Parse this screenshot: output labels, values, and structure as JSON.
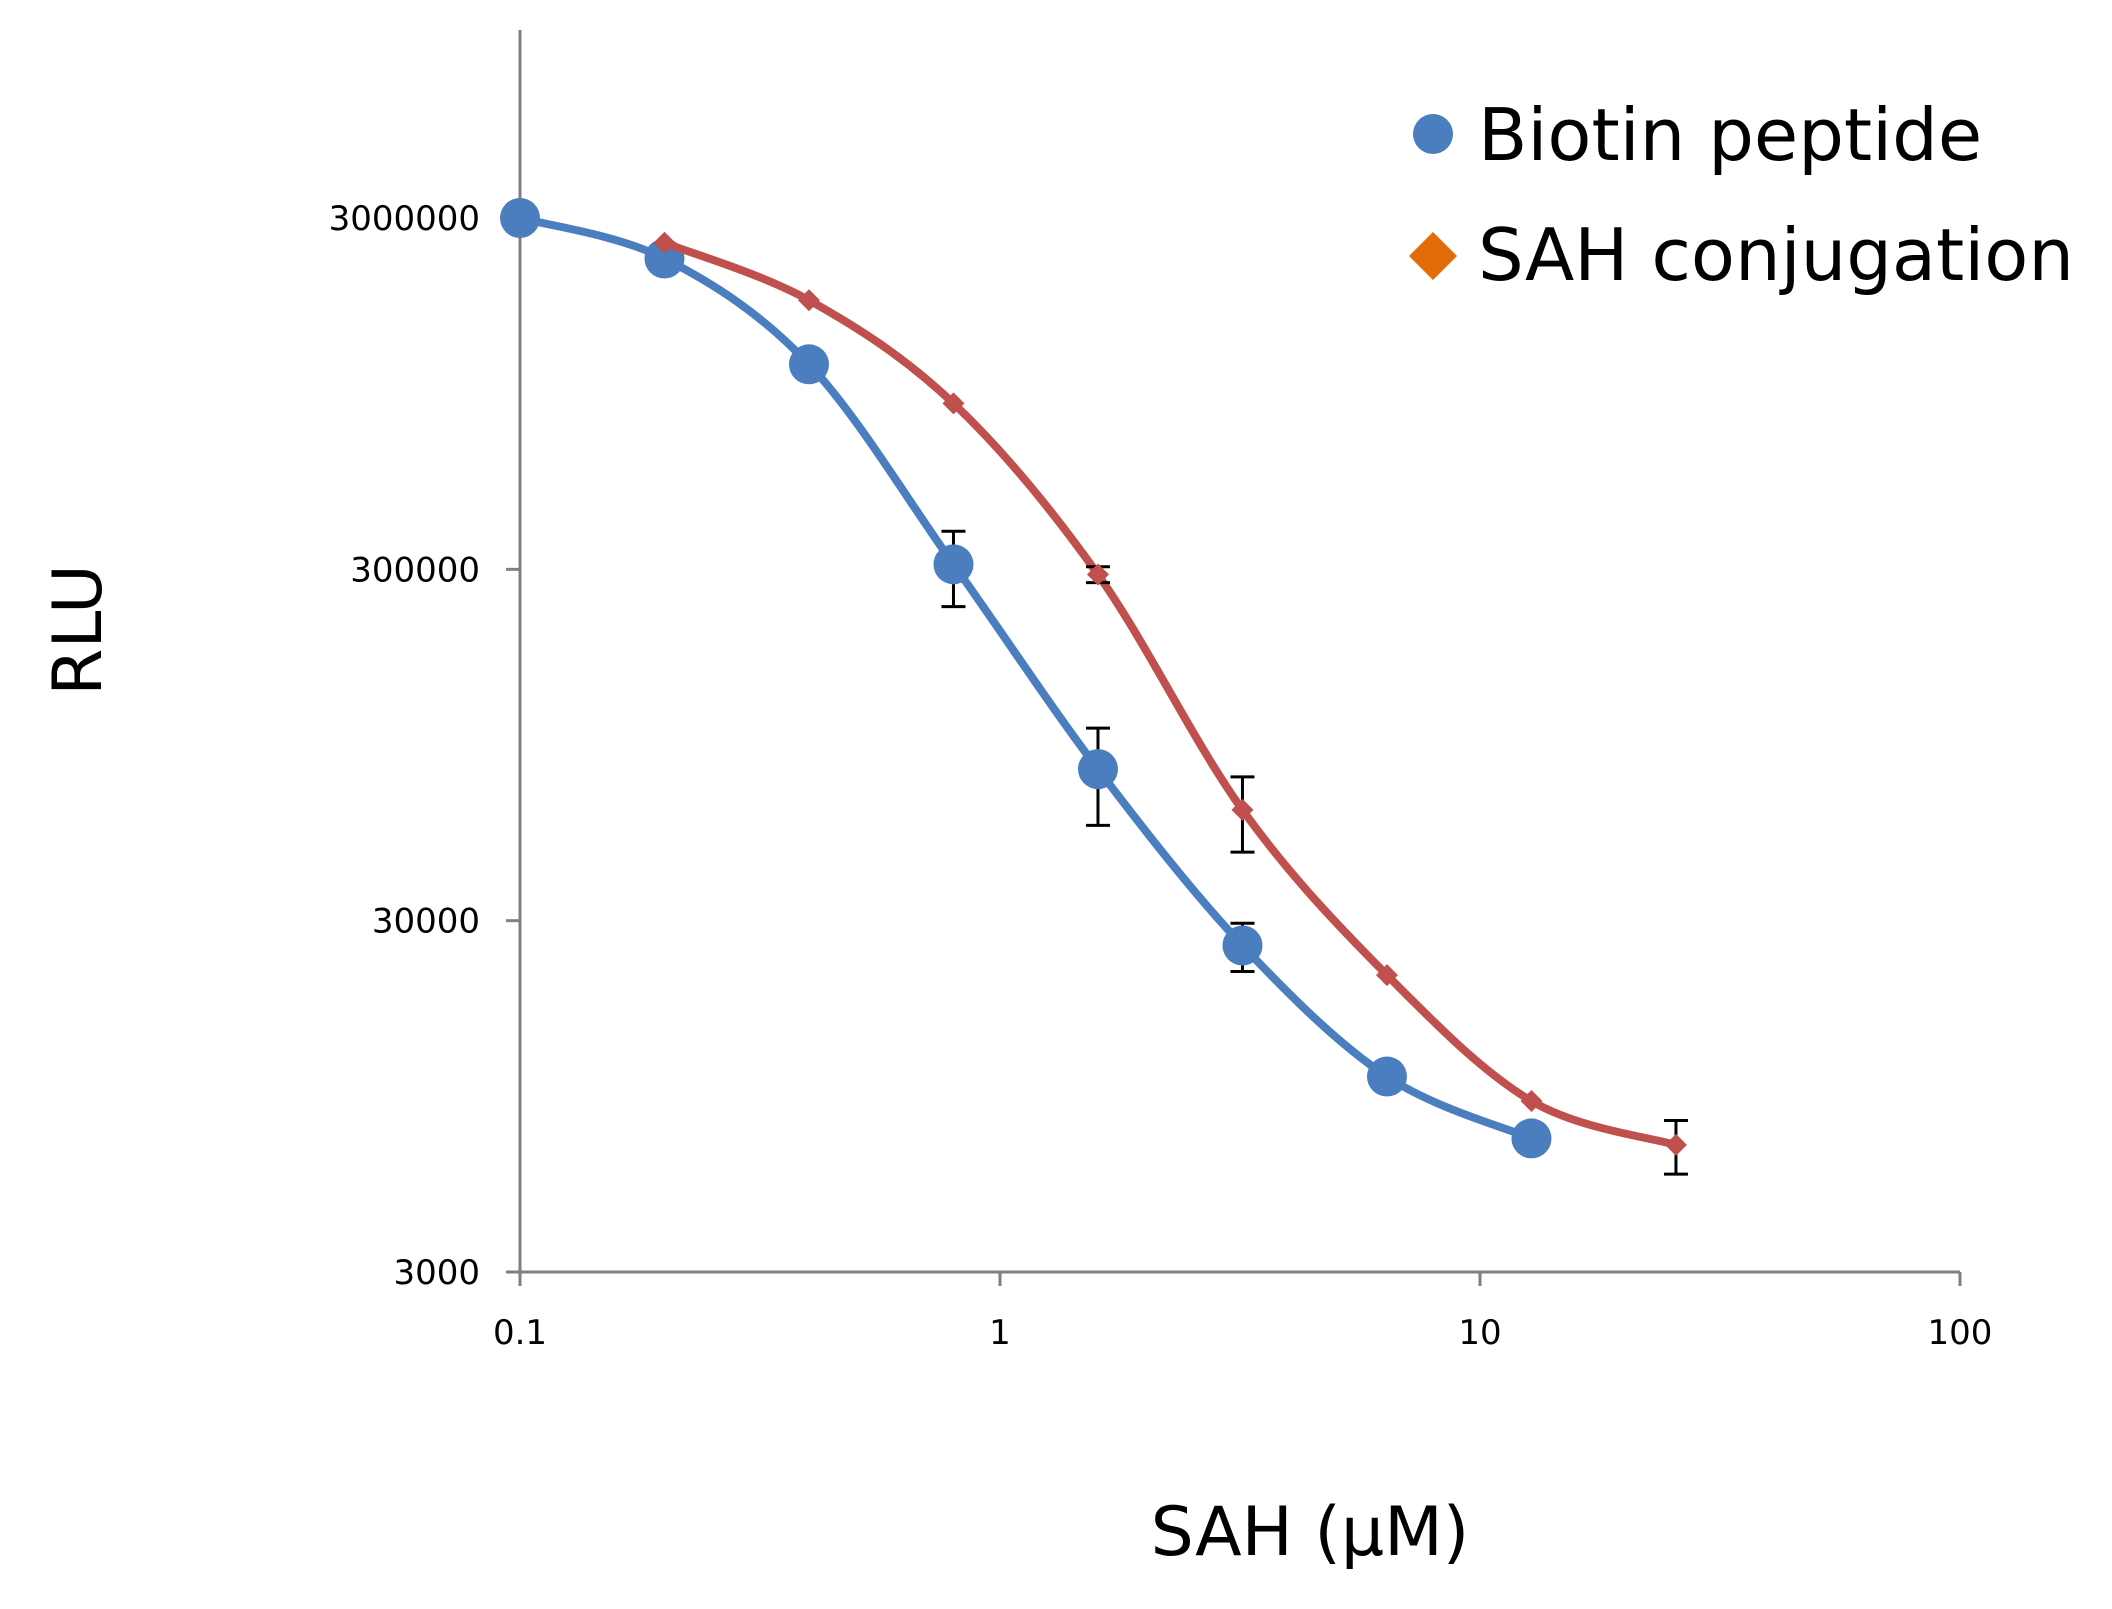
{
  "chart_data": {
    "type": "line",
    "xlabel": "SAH (μM)",
    "ylabel": "RLU",
    "x_scale": "log",
    "y_scale": "log",
    "xlim": [
      0.1,
      100
    ],
    "ylim": [
      3000,
      30000000
    ],
    "x_ticks": [
      {
        "value": 0.1,
        "label": "0.1"
      },
      {
        "value": 1,
        "label": "1"
      },
      {
        "value": 10,
        "label": "10"
      },
      {
        "value": 100,
        "label": "100"
      }
    ],
    "y_ticks": [
      {
        "value": 3000,
        "label": "3000"
      },
      {
        "value": 30000,
        "label": "30000"
      },
      {
        "value": 300000,
        "label": "300000"
      },
      {
        "value": 3000000,
        "label": "3000000"
      }
    ],
    "grid": false,
    "legend": "top-right",
    "series": [
      {
        "name": "Biotin peptide",
        "color": "#4a7ebf",
        "marker": "circle",
        "x": [
          0.1,
          0.2,
          0.4,
          0.8,
          1.6,
          3.2,
          6.4,
          12.8
        ],
        "y": [
          3000000,
          2300000,
          1150000,
          310000,
          81000,
          25500,
          10800,
          7200
        ],
        "error": [
          0,
          0,
          0,
          75000,
          25000,
          4000,
          0,
          0
        ]
      },
      {
        "name": "SAH conjugation",
        "color": "#c0504d",
        "marker": "diamond",
        "legend_color": "#e36c09",
        "x": [
          0.2,
          0.4,
          0.8,
          1.6,
          3.2,
          6.4,
          12.8,
          25.6
        ],
        "y": [
          2550000,
          1750000,
          890000,
          290000,
          62000,
          21000,
          9200,
          6900
        ],
        "error": [
          0,
          0,
          0,
          15000,
          15000,
          0,
          0,
          1200
        ]
      }
    ]
  }
}
